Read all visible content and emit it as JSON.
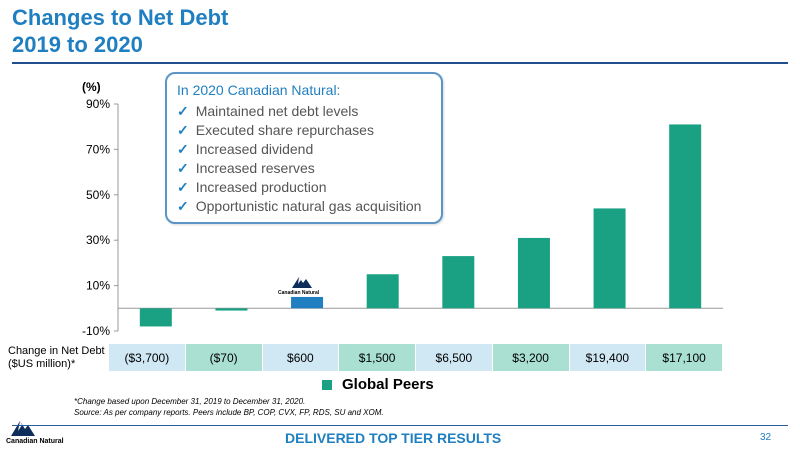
{
  "title": {
    "line1": "Changes to Net Debt",
    "line2": "2019 to 2020"
  },
  "callout": {
    "title": "In 2020 Canadian Natural:",
    "items": [
      "Maintained net debt levels",
      "Executed share repurchases",
      "Increased dividend",
      "Increased reserves",
      "Increased production",
      "Opportunistic natural gas acquisition"
    ]
  },
  "chart_data": {
    "type": "bar",
    "ylabel": "(%)",
    "ylim": [
      -10,
      90
    ],
    "yticks": [
      "90%",
      "70%",
      "50%",
      "30%",
      "10%",
      "-10%"
    ],
    "ytick_values": [
      90,
      70,
      50,
      30,
      10,
      -10
    ],
    "values": [
      -8,
      -1,
      5,
      15,
      23,
      31,
      44,
      81
    ],
    "highlight_index": 2,
    "highlight_label": "Canadian Natural",
    "colors": {
      "peers": "#1aa183",
      "highlight": "#1f7fc1"
    },
    "legend": "Global Peers"
  },
  "net_debt_row": {
    "label_line1": "Change in Net Debt",
    "label_line2": "($US million)*",
    "values": [
      "($3,700)",
      "($70)",
      "$600",
      "$1,500",
      "$6,500",
      "$3,200",
      "$19,400",
      "$17,100"
    ]
  },
  "footnote": {
    "line1": "*Change based upon December 31, 2019 to December 31, 2020.",
    "line2": "Source: As per company reports. Peers include BP, COP, CVX, FP, RDS, SU and XOM."
  },
  "footer": {
    "text": "DELIVERED TOP TIER RESULTS",
    "page": "32",
    "logo_text": "Canadian Natural"
  }
}
